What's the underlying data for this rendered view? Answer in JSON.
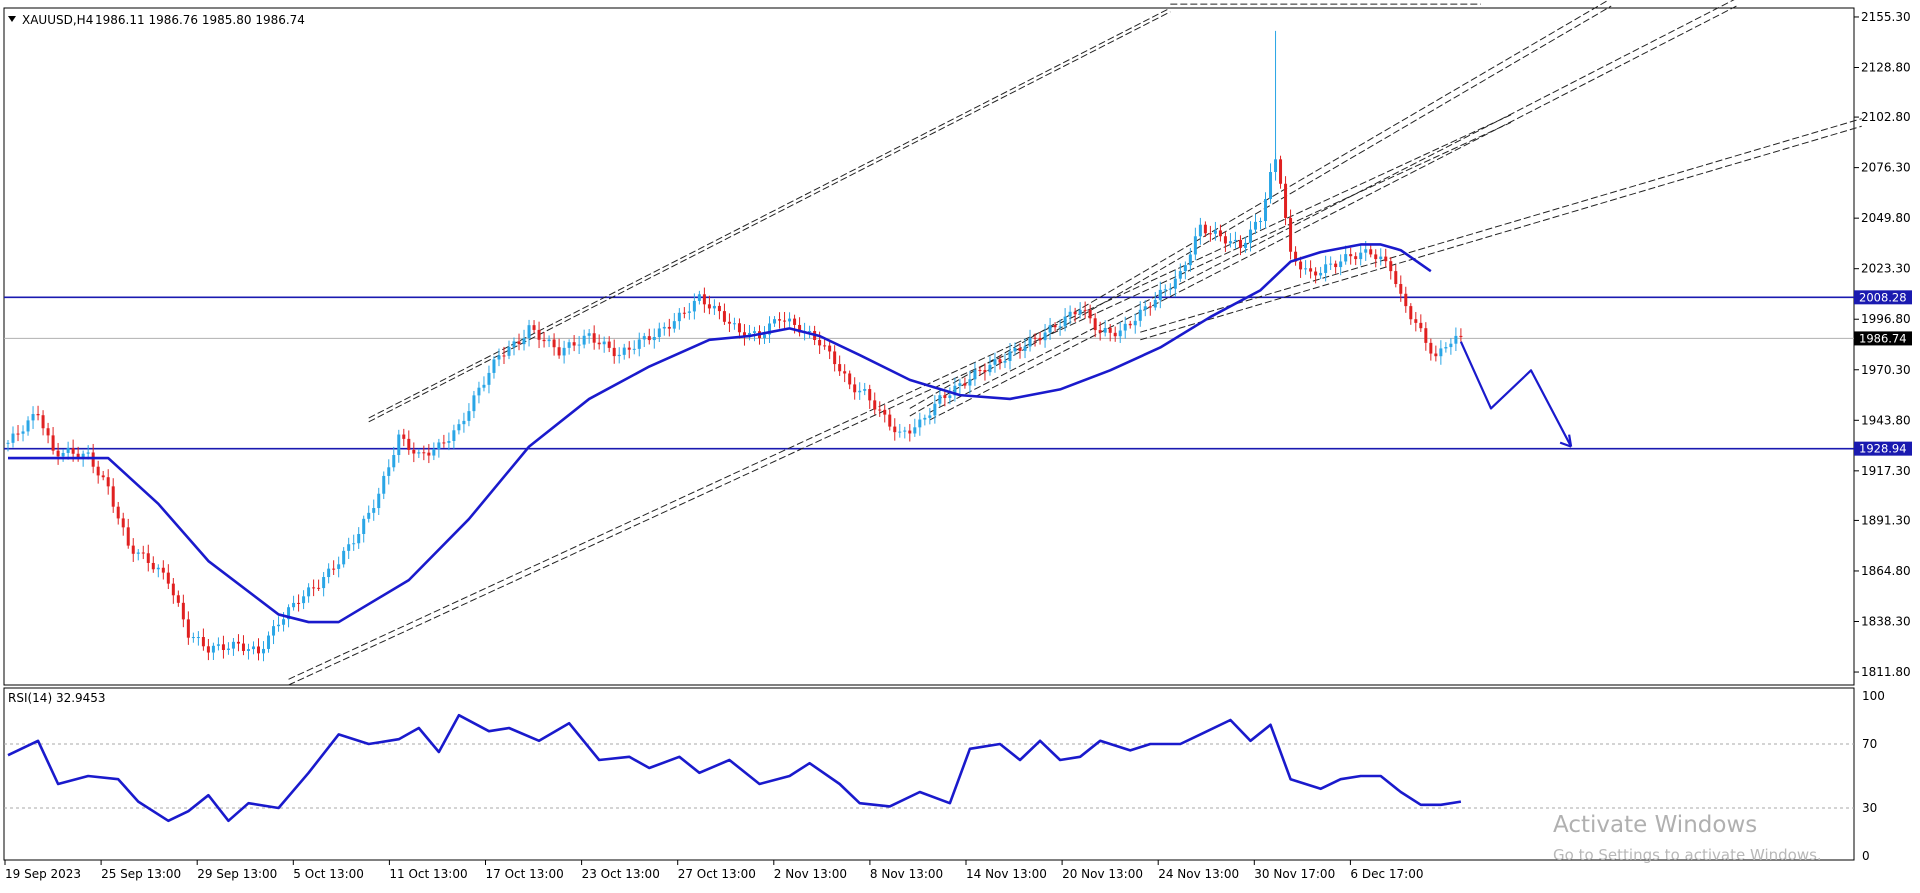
{
  "header": {
    "symbol": "XAUUSD,H4",
    "ohlc": "1986.11 1986.76 1985.80 1986.74"
  },
  "rsi_header": "RSI(14) 32.9453",
  "watermark": {
    "line1": "Activate Windows",
    "line2": "Go to Settings to activate Windows."
  },
  "colors": {
    "bull": "#2aa6e6",
    "bear": "#e02020",
    "ma": "#1a1acc",
    "level": "#1a1ab0",
    "rsi": "#1a1acc",
    "trend": "#222222",
    "bid": "#b0b0b0",
    "axis": "#000000"
  },
  "chart_data": [
    {
      "type": "candlestick",
      "symbol": "XAUUSD",
      "timeframe": "H4",
      "y_ticks": [
        "2155.30",
        "2128.80",
        "2102.80",
        "2076.30",
        "2049.80",
        "2023.30",
        "1996.80",
        "1970.30",
        "1943.80",
        "1917.30",
        "1891.30",
        "1864.80",
        "1838.30",
        "1811.80"
      ],
      "ylim": [
        1805,
        2160
      ],
      "price_labels": {
        "resistance": "2008.28",
        "current": "1986.74",
        "support": "1928.94"
      },
      "levels": [
        2008.28,
        1928.94
      ],
      "current_price": 1986.74,
      "x_ticks": [
        "19 Sep 2023",
        "25 Sep 13:00",
        "29 Sep 13:00",
        "5 Oct 13:00",
        "11 Oct 13:00",
        "17 Oct 13:00",
        "23 Oct 13:00",
        "27 Oct 13:00",
        "2 Nov 13:00",
        "8 Nov 13:00",
        "14 Nov 13:00",
        "20 Nov 13:00",
        "24 Nov 13:00",
        "30 Nov 17:00",
        "6 Dec 17:00"
      ],
      "price_path": [
        [
          0,
          1932
        ],
        [
          6,
          1948
        ],
        [
          9,
          1927
        ],
        [
          12,
          1927
        ],
        [
          16,
          1925
        ],
        [
          20,
          1908
        ],
        [
          24,
          1878
        ],
        [
          28,
          1870
        ],
        [
          32,
          1860
        ],
        [
          36,
          1832
        ],
        [
          40,
          1824
        ],
        [
          46,
          1826
        ],
        [
          50,
          1822
        ],
        [
          54,
          1838
        ],
        [
          58,
          1850
        ],
        [
          62,
          1858
        ],
        [
          66,
          1870
        ],
        [
          70,
          1885
        ],
        [
          74,
          1905
        ],
        [
          78,
          1935
        ],
        [
          82,
          1925
        ],
        [
          86,
          1930
        ],
        [
          90,
          1940
        ],
        [
          94,
          1960
        ],
        [
          98,
          1978
        ],
        [
          102,
          1985
        ],
        [
          104,
          1992
        ],
        [
          110,
          1980
        ],
        [
          116,
          1988
        ],
        [
          122,
          1978
        ],
        [
          126,
          1985
        ],
        [
          130,
          1990
        ],
        [
          134,
          1998
        ],
        [
          138,
          2008
        ],
        [
          142,
          2000
        ],
        [
          146,
          1990
        ],
        [
          150,
          1988
        ],
        [
          154,
          1998
        ],
        [
          158,
          1992
        ],
        [
          162,
          1985
        ],
        [
          165,
          1975
        ],
        [
          168,
          1962
        ],
        [
          171,
          1958
        ],
        [
          175,
          1945
        ],
        [
          178,
          1936
        ],
        [
          182,
          1942
        ],
        [
          186,
          1955
        ],
        [
          190,
          1962
        ],
        [
          194,
          1970
        ],
        [
          198,
          1975
        ],
        [
          202,
          1982
        ],
        [
          206,
          1988
        ],
        [
          210,
          1995
        ],
        [
          214,
          2003
        ],
        [
          218,
          1990
        ],
        [
          222,
          1990
        ],
        [
          226,
          2000
        ],
        [
          230,
          2010
        ],
        [
          234,
          2020
        ],
        [
          238,
          2045
        ],
        [
          242,
          2040
        ],
        [
          246,
          2035
        ],
        [
          250,
          2050
        ],
        [
          252,
          2072
        ],
        [
          253,
          2080
        ],
        [
          254,
          2070
        ],
        [
          256,
          2030
        ],
        [
          260,
          2020
        ],
        [
          264,
          2025
        ],
        [
          268,
          2030
        ],
        [
          272,
          2032
        ],
        [
          276,
          2024
        ],
        [
          278,
          2008
        ],
        [
          282,
          1990
        ],
        [
          285,
          1976
        ],
        [
          287,
          1984
        ],
        [
          290,
          1987
        ]
      ],
      "ma_path": [
        [
          0,
          1924
        ],
        [
          20,
          1924
        ],
        [
          30,
          1900
        ],
        [
          40,
          1870
        ],
        [
          54,
          1842
        ],
        [
          60,
          1838
        ],
        [
          66,
          1838
        ],
        [
          80,
          1860
        ],
        [
          92,
          1892
        ],
        [
          104,
          1930
        ],
        [
          116,
          1955
        ],
        [
          128,
          1972
        ],
        [
          140,
          1986
        ],
        [
          148,
          1988
        ],
        [
          156,
          1992
        ],
        [
          162,
          1988
        ],
        [
          170,
          1978
        ],
        [
          180,
          1965
        ],
        [
          190,
          1957
        ],
        [
          200,
          1955
        ],
        [
          210,
          1960
        ],
        [
          220,
          1970
        ],
        [
          230,
          1982
        ],
        [
          240,
          1998
        ],
        [
          250,
          2012
        ],
        [
          256,
          2027
        ],
        [
          262,
          2032
        ],
        [
          270,
          2036
        ],
        [
          274,
          2036
        ],
        [
          278,
          2033
        ],
        [
          284,
          2022
        ]
      ],
      "projection": [
        [
          290,
          1985
        ],
        [
          296,
          1950
        ],
        [
          304,
          1970
        ],
        [
          312,
          1930
        ]
      ]
    },
    {
      "type": "line",
      "indicator": "RSI(14)",
      "last_value": 32.9453,
      "ylim": [
        0,
        100
      ],
      "y_ticks": [
        "100",
        "70",
        "30",
        "0"
      ],
      "levels": [
        70,
        30
      ],
      "values": [
        [
          0,
          63
        ],
        [
          6,
          72
        ],
        [
          10,
          45
        ],
        [
          16,
          50
        ],
        [
          22,
          48
        ],
        [
          26,
          34
        ],
        [
          32,
          22
        ],
        [
          36,
          28
        ],
        [
          40,
          38
        ],
        [
          44,
          22
        ],
        [
          48,
          33
        ],
        [
          54,
          30
        ],
        [
          60,
          52
        ],
        [
          66,
          76
        ],
        [
          72,
          70
        ],
        [
          78,
          73
        ],
        [
          82,
          80
        ],
        [
          86,
          65
        ],
        [
          90,
          88
        ],
        [
          96,
          78
        ],
        [
          100,
          80
        ],
        [
          106,
          72
        ],
        [
          112,
          83
        ],
        [
          118,
          60
        ],
        [
          124,
          62
        ],
        [
          128,
          55
        ],
        [
          134,
          62
        ],
        [
          138,
          52
        ],
        [
          144,
          60
        ],
        [
          150,
          45
        ],
        [
          156,
          50
        ],
        [
          160,
          58
        ],
        [
          166,
          45
        ],
        [
          170,
          33
        ],
        [
          176,
          31
        ],
        [
          182,
          40
        ],
        [
          188,
          33
        ],
        [
          192,
          67
        ],
        [
          198,
          70
        ],
        [
          202,
          60
        ],
        [
          206,
          72
        ],
        [
          210,
          60
        ],
        [
          214,
          62
        ],
        [
          218,
          72
        ],
        [
          224,
          66
        ],
        [
          228,
          70
        ],
        [
          234,
          70
        ],
        [
          238,
          76
        ],
        [
          244,
          85
        ],
        [
          248,
          72
        ],
        [
          252,
          82
        ],
        [
          256,
          48
        ],
        [
          262,
          42
        ],
        [
          266,
          48
        ],
        [
          270,
          50
        ],
        [
          274,
          50
        ],
        [
          278,
          40
        ],
        [
          282,
          32
        ],
        [
          286,
          32
        ],
        [
          290,
          34
        ]
      ]
    }
  ]
}
